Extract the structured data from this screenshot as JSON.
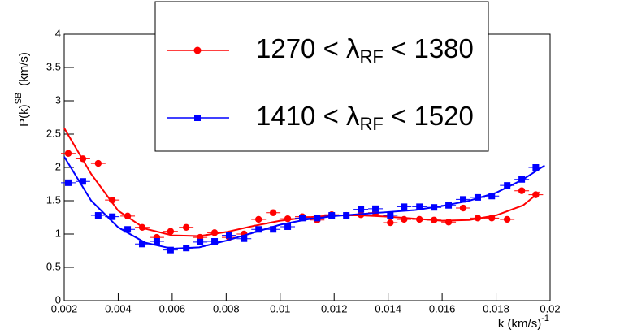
{
  "chart_data": {
    "type": "scatter",
    "y_label": {
      "text": "P(k)",
      "sup": "SB",
      "post": "(km/s)"
    },
    "x_label": {
      "text": "k  (km/s)",
      "sup": "-1"
    },
    "xlim": [
      0.002,
      0.02
    ],
    "ylim": [
      0,
      4
    ],
    "xticks": [
      0.002,
      0.004,
      0.006,
      0.008,
      0.01,
      0.012,
      0.014,
      0.016,
      0.018,
      0.02
    ],
    "yticks": [
      0,
      0.5,
      1,
      1.5,
      2,
      2.5,
      3,
      3.5,
      4
    ],
    "series": [
      {
        "name": {
          "text": "1270 < λ",
          "sub": "RF",
          "post": " < 1380"
        },
        "color": "#ff0000",
        "marker": "circle",
        "xerr": 0.00027,
        "x": [
          0.00215,
          0.00269,
          0.00326,
          0.00378,
          0.00435,
          0.00489,
          0.00543,
          0.00594,
          0.00652,
          0.00703,
          0.00757,
          0.00811,
          0.00866,
          0.0092,
          0.00974,
          0.01028,
          0.01082,
          0.01137,
          0.01191,
          0.01245,
          0.01299,
          0.01353,
          0.01408,
          0.01459,
          0.01516,
          0.0157,
          0.01624,
          0.01678,
          0.01732,
          0.01784,
          0.01841,
          0.01895,
          0.01947
        ],
        "values": [
          2.21,
          2.13,
          2.06,
          1.51,
          1.27,
          1.1,
          0.95,
          1.04,
          1.1,
          0.95,
          1.02,
          0.95,
          1.0,
          1.22,
          1.32,
          1.23,
          1.26,
          1.21,
          1.29,
          1.28,
          1.29,
          1.32,
          1.17,
          1.22,
          1.22,
          1.21,
          1.18,
          1.39,
          1.24,
          1.24,
          1.22,
          1.65,
          1.59
        ],
        "fit_x": [
          0.002,
          0.003,
          0.004,
          0.005,
          0.006,
          0.007,
          0.008,
          0.009,
          0.01,
          0.011,
          0.012,
          0.013,
          0.014,
          0.015,
          0.016,
          0.017,
          0.018,
          0.019,
          0.0196
        ],
        "fit_values": [
          2.59,
          1.9,
          1.35,
          1.08,
          0.98,
          0.97,
          1.03,
          1.12,
          1.2,
          1.25,
          1.28,
          1.28,
          1.26,
          1.23,
          1.2,
          1.21,
          1.28,
          1.43,
          1.63
        ]
      },
      {
        "name": {
          "text": "1410 < λ",
          "sub": "RF",
          "post": " < 1520"
        },
        "color": "#0000ff",
        "marker": "square",
        "xerr": 0.00027,
        "x": [
          0.00215,
          0.00269,
          0.00326,
          0.00378,
          0.00435,
          0.00489,
          0.00543,
          0.00594,
          0.00652,
          0.00703,
          0.00757,
          0.00811,
          0.00866,
          0.0092,
          0.00974,
          0.01028,
          0.01082,
          0.01137,
          0.01191,
          0.01245,
          0.01299,
          0.01353,
          0.01408,
          0.01459,
          0.01516,
          0.0157,
          0.01624,
          0.01678,
          0.01732,
          0.01784,
          0.01841,
          0.01895,
          0.01947
        ],
        "values": [
          1.77,
          1.79,
          1.28,
          1.26,
          1.07,
          0.85,
          0.89,
          0.76,
          0.79,
          0.88,
          0.89,
          0.98,
          0.93,
          1.07,
          1.07,
          1.11,
          1.24,
          1.24,
          1.28,
          1.28,
          1.37,
          1.38,
          1.28,
          1.41,
          1.41,
          1.4,
          1.43,
          1.52,
          1.55,
          1.57,
          1.73,
          1.82,
          2.0
        ],
        "fit_x": [
          0.002,
          0.003,
          0.004,
          0.005,
          0.006,
          0.007,
          0.008,
          0.009,
          0.01,
          0.011,
          0.012,
          0.013,
          0.014,
          0.015,
          0.016,
          0.017,
          0.018,
          0.019,
          0.0198
        ],
        "fit_values": [
          2.16,
          1.5,
          1.1,
          0.87,
          0.78,
          0.8,
          0.9,
          1.02,
          1.14,
          1.22,
          1.27,
          1.3,
          1.33,
          1.36,
          1.42,
          1.5,
          1.62,
          1.82,
          2.03
        ]
      }
    ]
  }
}
